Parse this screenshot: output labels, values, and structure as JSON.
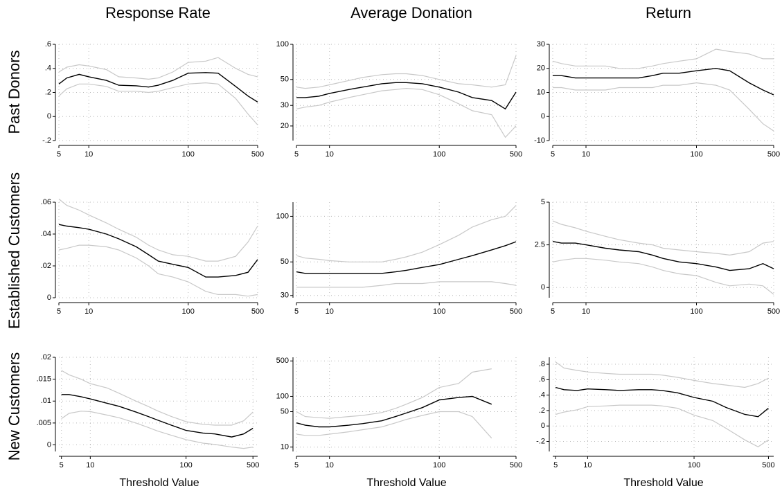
{
  "column_titles": [
    "Response Rate",
    "Average Donation",
    "Return"
  ],
  "row_titles": [
    "Past Donors",
    "Established Customers",
    "New Customers"
  ],
  "x_label": "Threshold Value",
  "chart_data": [
    {
      "type": "line",
      "log_x": true,
      "grid": true,
      "x": [
        5,
        6,
        8,
        10,
        15,
        20,
        30,
        40,
        50,
        70,
        100,
        150,
        200,
        300,
        400,
        500
      ],
      "xlim": [
        5,
        500
      ],
      "xticks": [
        5,
        10,
        100,
        500
      ],
      "ylim": [
        -0.2,
        0.6
      ],
      "yticks": [
        {
          "value": -0.2,
          "label": "-.2"
        },
        0,
        {
          "value": 0.2,
          "label": ".2"
        },
        {
          "value": 0.4,
          "label": ".4"
        },
        {
          "value": 0.6,
          "label": ".6"
        }
      ],
      "series": [
        {
          "color": "#c8c8c8",
          "values": [
            0.37,
            0.41,
            0.43,
            0.42,
            0.39,
            0.33,
            0.32,
            0.31,
            0.32,
            0.37,
            0.45,
            0.46,
            0.49,
            0.4,
            0.35,
            0.33
          ]
        },
        {
          "color": "#c8c8c8",
          "values": [
            0.17,
            0.23,
            0.27,
            0.27,
            0.25,
            0.21,
            0.21,
            0.2,
            0.21,
            0.24,
            0.27,
            0.28,
            0.27,
            0.15,
            0.02,
            -0.07
          ]
        },
        {
          "color": "#000000",
          "values": [
            0.27,
            0.32,
            0.35,
            0.33,
            0.3,
            0.26,
            0.255,
            0.245,
            0.26,
            0.3,
            0.36,
            0.365,
            0.36,
            0.25,
            0.17,
            0.12
          ]
        }
      ]
    },
    {
      "type": "line",
      "log_x": true,
      "log_y": true,
      "grid": true,
      "x": [
        5,
        6,
        8,
        10,
        15,
        20,
        30,
        40,
        50,
        70,
        100,
        150,
        200,
        300,
        400,
        500
      ],
      "xlim": [
        5,
        500
      ],
      "xticks": [
        5,
        10,
        100,
        500
      ],
      "ylim": [
        15,
        100
      ],
      "yticks": [
        20,
        30,
        50,
        100
      ],
      "series": [
        {
          "color": "#c8c8c8",
          "values": [
            43,
            42,
            43,
            45,
            49,
            52,
            55,
            56,
            56,
            54,
            50,
            46,
            45,
            43,
            45,
            80
          ]
        },
        {
          "color": "#c8c8c8",
          "values": [
            28,
            29,
            30,
            32,
            35,
            37,
            40,
            41,
            42,
            41,
            37,
            31,
            27,
            25,
            16,
            20
          ]
        },
        {
          "color": "#000000",
          "values": [
            35,
            35,
            36,
            38,
            41,
            43,
            46,
            47,
            47,
            46,
            43,
            39,
            35,
            33,
            28,
            39
          ]
        }
      ]
    },
    {
      "type": "line",
      "log_x": true,
      "grid": true,
      "x": [
        5,
        6,
        8,
        10,
        15,
        20,
        30,
        40,
        50,
        70,
        100,
        150,
        200,
        300,
        400,
        500
      ],
      "xlim": [
        5,
        500
      ],
      "xticks": [
        5,
        10,
        100,
        500
      ],
      "ylim": [
        -10,
        30
      ],
      "yticks": [
        -10,
        0,
        10,
        20,
        30
      ],
      "series": [
        {
          "color": "#c8c8c8",
          "values": [
            23,
            22,
            21,
            21,
            21,
            20,
            20,
            21,
            22,
            23,
            24,
            28,
            27,
            26,
            24,
            24
          ]
        },
        {
          "color": "#c8c8c8",
          "values": [
            12,
            12,
            11,
            11,
            11,
            12,
            12,
            12,
            13,
            13,
            14,
            13,
            11,
            3,
            -3,
            -6
          ]
        },
        {
          "color": "#000000",
          "values": [
            17,
            17,
            16,
            16,
            16,
            16,
            16,
            17,
            18,
            18,
            19,
            20,
            19,
            14,
            11,
            9
          ]
        }
      ]
    },
    {
      "type": "line",
      "log_x": true,
      "grid": true,
      "x": [
        5,
        6,
        8,
        10,
        15,
        20,
        30,
        40,
        50,
        70,
        100,
        150,
        200,
        300,
        400,
        500
      ],
      "xlim": [
        5,
        500
      ],
      "xticks": [
        5,
        10,
        100,
        500
      ],
      "ylim": [
        0,
        0.06
      ],
      "yticks": [
        0,
        {
          "value": 0.02,
          "label": ".02"
        },
        {
          "value": 0.04,
          "label": ".04"
        },
        {
          "value": 0.06,
          "label": ".06"
        }
      ],
      "series": [
        {
          "color": "#c8c8c8",
          "values": [
            0.062,
            0.058,
            0.055,
            0.052,
            0.047,
            0.043,
            0.038,
            0.033,
            0.03,
            0.027,
            0.026,
            0.023,
            0.023,
            0.026,
            0.035,
            0.045
          ]
        },
        {
          "color": "#c8c8c8",
          "values": [
            0.03,
            0.031,
            0.033,
            0.033,
            0.032,
            0.03,
            0.025,
            0.02,
            0.015,
            0.013,
            0.01,
            0.004,
            0.002,
            0.002,
            0.001,
            0.002
          ]
        },
        {
          "color": "#000000",
          "values": [
            0.046,
            0.045,
            0.044,
            0.043,
            0.04,
            0.037,
            0.032,
            0.027,
            0.023,
            0.021,
            0.019,
            0.013,
            0.013,
            0.014,
            0.016,
            0.024
          ]
        }
      ]
    },
    {
      "type": "line",
      "log_x": true,
      "log_y": true,
      "grid": true,
      "x": [
        5,
        6,
        8,
        10,
        15,
        20,
        30,
        40,
        50,
        70,
        100,
        150,
        200,
        300,
        400,
        500
      ],
      "xlim": [
        5,
        500
      ],
      "xticks": [
        5,
        10,
        100,
        500
      ],
      "ylim": [
        29,
        124
      ],
      "yticks": [
        30,
        50,
        100
      ],
      "series": [
        {
          "color": "#c8c8c8",
          "values": [
            55,
            53,
            52,
            51,
            50,
            50,
            50,
            52,
            54,
            58,
            65,
            75,
            85,
            95,
            100,
            118
          ]
        },
        {
          "color": "#c8c8c8",
          "values": [
            34,
            34,
            34,
            34,
            34,
            34,
            35,
            36,
            36,
            36,
            37,
            37,
            37,
            37,
            36,
            35
          ]
        },
        {
          "color": "#000000",
          "values": [
            43,
            42,
            42,
            42,
            42,
            42,
            42,
            43,
            44,
            46,
            48,
            52,
            55,
            60,
            64,
            68
          ]
        }
      ]
    },
    {
      "type": "line",
      "log_x": true,
      "grid": true,
      "x": [
        5,
        6,
        8,
        10,
        15,
        20,
        30,
        40,
        50,
        70,
        100,
        150,
        200,
        300,
        400,
        500
      ],
      "xlim": [
        5,
        500
      ],
      "xticks": [
        5,
        10,
        100,
        500
      ],
      "ylim": [
        -0.6,
        5
      ],
      "yticks": [
        0,
        2.5,
        5
      ],
      "series": [
        {
          "color": "#c8c8c8",
          "values": [
            3.9,
            3.7,
            3.5,
            3.3,
            3.0,
            2.8,
            2.6,
            2.5,
            2.3,
            2.2,
            2.1,
            2.0,
            1.9,
            2.1,
            2.6,
            2.7
          ]
        },
        {
          "color": "#c8c8c8",
          "values": [
            1.5,
            1.6,
            1.7,
            1.7,
            1.6,
            1.5,
            1.4,
            1.2,
            1.0,
            0.8,
            0.7,
            0.3,
            0.1,
            0.2,
            0.1,
            -0.4
          ]
        },
        {
          "color": "#000000",
          "values": [
            2.7,
            2.6,
            2.6,
            2.5,
            2.3,
            2.2,
            2.1,
            1.9,
            1.7,
            1.5,
            1.4,
            1.2,
            1.0,
            1.1,
            1.4,
            1.1
          ]
        }
      ]
    },
    {
      "type": "line",
      "log_x": true,
      "grid": true,
      "x": [
        5,
        6,
        8,
        10,
        15,
        20,
        30,
        40,
        50,
        70,
        100,
        150,
        200,
        300,
        400,
        500
      ],
      "xlim": [
        4.7,
        560
      ],
      "xticks": [
        5,
        10,
        100,
        500
      ],
      "ylim": [
        -0.0015,
        0.02
      ],
      "yticks": [
        0,
        {
          "value": 0.005,
          "label": ".005"
        },
        {
          "value": 0.01,
          "label": ".01"
        },
        {
          "value": 0.015,
          "label": ".015"
        },
        {
          "value": 0.02,
          "label": ".02"
        }
      ],
      "series": [
        {
          "color": "#c8c8c8",
          "values": [
            0.017,
            0.016,
            0.015,
            0.014,
            0.013,
            0.0118,
            0.01,
            0.0088,
            0.0078,
            0.0065,
            0.0053,
            0.0047,
            0.0045,
            0.0045,
            0.0055,
            0.0075
          ]
        },
        {
          "color": "#c8c8c8",
          "values": [
            0.006,
            0.0072,
            0.0077,
            0.0076,
            0.0068,
            0.0062,
            0.005,
            0.004,
            0.0032,
            0.0022,
            0.0012,
            0.0004,
            0.0001,
            -0.0005,
            -0.0008,
            -0.0005
          ]
        },
        {
          "color": "#000000",
          "values": [
            0.0115,
            0.0115,
            0.011,
            0.0105,
            0.0095,
            0.0088,
            0.0075,
            0.0065,
            0.0057,
            0.0045,
            0.0033,
            0.0027,
            0.0025,
            0.0018,
            0.0025,
            0.0038
          ]
        }
      ]
    },
    {
      "type": "line",
      "log_x": true,
      "log_y": true,
      "grid": true,
      "x": [
        5,
        6,
        8,
        10,
        15,
        20,
        30,
        40,
        50,
        70,
        100,
        150,
        200,
        300,
        400,
        500
      ],
      "xlim": [
        5,
        500
      ],
      "xticks": [
        5,
        10,
        100,
        500
      ],
      "ylim": [
        8.2,
        590
      ],
      "yticks": [
        10,
        50,
        100,
        500
      ],
      "series": [
        {
          "color": "#c8c8c8",
          "values": [
            50,
            40,
            38,
            37,
            40,
            42,
            48,
            58,
            70,
            95,
            150,
            180,
            300,
            350,
            null,
            null
          ]
        },
        {
          "color": "#c8c8c8",
          "values": [
            18,
            17,
            17,
            18,
            20,
            22,
            25,
            30,
            35,
            42,
            50,
            50,
            40,
            15,
            null,
            null
          ]
        },
        {
          "color": "#000000",
          "values": [
            30,
            27,
            25,
            25,
            27,
            29,
            33,
            40,
            47,
            60,
            85,
            95,
            100,
            70,
            null,
            null
          ]
        }
      ]
    },
    {
      "type": "line",
      "log_x": true,
      "grid": true,
      "x": [
        5,
        6,
        8,
        10,
        15,
        20,
        30,
        40,
        50,
        70,
        100,
        150,
        200,
        300,
        400,
        500
      ],
      "xlim": [
        4.7,
        560
      ],
      "xticks": [
        5,
        10,
        100,
        500
      ],
      "ylim": [
        -0.33,
        0.89
      ],
      "yticks": [
        {
          "value": -0.2,
          "label": "-.2"
        },
        0,
        {
          "value": 0.2,
          "label": ".2"
        },
        {
          "value": 0.4,
          "label": ".4"
        },
        {
          "value": 0.6,
          "label": ".6"
        },
        {
          "value": 0.8,
          "label": ".8"
        }
      ],
      "series": [
        {
          "color": "#c8c8c8",
          "values": [
            0.83,
            0.75,
            0.72,
            0.7,
            0.68,
            0.67,
            0.67,
            0.67,
            0.66,
            0.63,
            0.59,
            0.55,
            0.53,
            0.5,
            0.55,
            0.62
          ]
        },
        {
          "color": "#c8c8c8",
          "values": [
            0.15,
            0.18,
            0.21,
            0.25,
            0.26,
            0.27,
            0.27,
            0.27,
            0.26,
            0.23,
            0.14,
            0.07,
            -0.03,
            -0.18,
            -0.27,
            -0.18
          ]
        },
        {
          "color": "#000000",
          "values": [
            0.5,
            0.47,
            0.46,
            0.48,
            0.47,
            0.46,
            0.47,
            0.47,
            0.46,
            0.43,
            0.37,
            0.32,
            0.24,
            0.15,
            0.12,
            0.23
          ]
        }
      ]
    }
  ]
}
